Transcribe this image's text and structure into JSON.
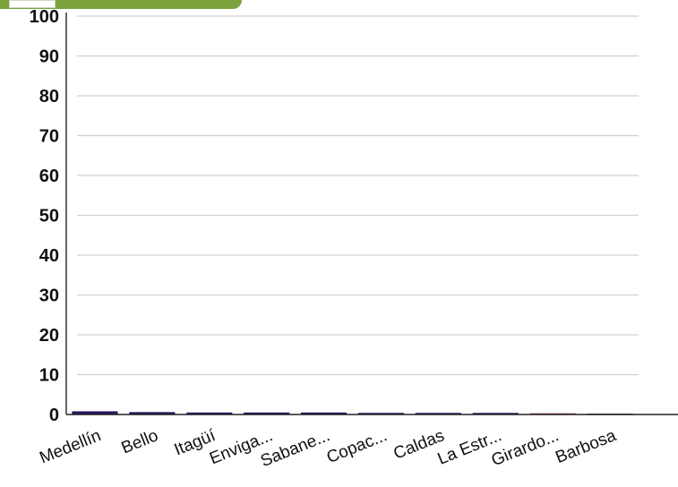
{
  "toolbar": {
    "accent": "#7aa33c"
  },
  "chart_data": {
    "type": "bar",
    "title": "",
    "xlabel": "",
    "ylabel": "",
    "ylim": [
      0,
      100
    ],
    "yticks": [
      0,
      10,
      20,
      30,
      40,
      50,
      60,
      70,
      80,
      90,
      100
    ],
    "grid": true,
    "legend": "none",
    "categories": [
      "Medellín",
      "Bello",
      "Itagüí",
      "Enviga...",
      "Sabane...",
      "Copac...",
      "Caldas",
      "La Estr...",
      "Girardo...",
      "Barbosa"
    ],
    "series": [
      {
        "values": [
          0.8,
          0.6,
          0.5,
          0.5,
          0.5,
          0.4,
          0.4,
          0.4,
          0.3,
          0.1
        ]
      }
    ],
    "colors": {
      "bar": "#2a1560",
      "bar_last": "#8a3a3a",
      "grid": "#d0d0d0",
      "axis": "#222222"
    }
  }
}
